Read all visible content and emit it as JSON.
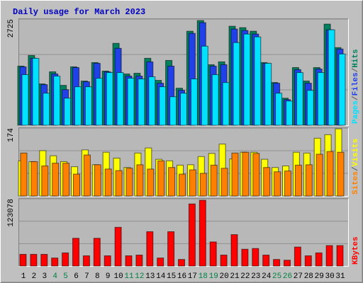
{
  "title": "Daily usage for March 2023",
  "legend_separator": "/",
  "weekend_color": "#008040",
  "weekends": [
    "4",
    "5",
    "11",
    "12",
    "18",
    "19",
    "25",
    "26"
  ],
  "chart_data": [
    {
      "type": "bar",
      "ylim": [
        0,
        2725
      ],
      "yticks": [
        2725
      ],
      "series": [
        {
          "name": "Hits",
          "color": "#00805c",
          "values": [
            1518,
            1792,
            1061,
            1372,
            1024,
            1500,
            1134,
            1609,
            1390,
            2103,
            1317,
            1335,
            1719,
            1152,
            1664,
            951,
            2414,
            2688,
            1554,
            1628,
            2542,
            2506,
            2414,
            1609,
            1097,
            695,
            1481,
            1134,
            1481,
            2597,
            1993
          ]
        },
        {
          "name": "Files",
          "color": "#2040e8",
          "values": [
            1500,
            1719,
            1042,
            1317,
            914,
            1481,
            1116,
            1591,
            1372,
            1975,
            1262,
            1262,
            1628,
            1079,
            1518,
            896,
            2359,
            2634,
            1518,
            1555,
            2469,
            2433,
            2341,
            1591,
            1079,
            658,
            1427,
            1079,
            1445,
            2451,
            1957
          ]
        },
        {
          "name": "Pages",
          "color": "#00e0ff",
          "values": [
            1299,
            1719,
            823,
            1262,
            695,
            988,
            988,
            1207,
            1353,
            1353,
            1207,
            1189,
            1244,
            988,
            732,
            823,
            1189,
            2030,
            1299,
            1097,
            2122,
            2341,
            2268,
            1591,
            823,
            622,
            1353,
            896,
            1353,
            2451,
            1829
          ]
        }
      ]
    },
    {
      "type": "bar",
      "ylim": [
        0,
        174
      ],
      "yticks": [
        174
      ],
      "series": [
        {
          "name": "Visits",
          "color": "#ffff00",
          "values": [
            90,
            88,
            116,
            103,
            88,
            75,
            118,
            80,
            112,
            97,
            73,
            110,
            123,
            94,
            90,
            79,
            80,
            101,
            109,
            133,
            95,
            112,
            112,
            94,
            73,
            77,
            112,
            110,
            148,
            157,
            172
          ]
        },
        {
          "name": "Sites",
          "color": "#ff8000",
          "values": [
            110,
            88,
            77,
            84,
            84,
            56,
            105,
            80,
            69,
            65,
            71,
            80,
            69,
            90,
            73,
            56,
            67,
            58,
            79,
            71,
            110,
            112,
            109,
            73,
            62,
            64,
            79,
            80,
            107,
            114,
            112
          ]
        }
      ]
    },
    {
      "type": "bar",
      "ylim": [
        0,
        123078
      ],
      "yticks": [
        123078
      ],
      "categories": [
        "1",
        "2",
        "3",
        "4",
        "5",
        "6",
        "7",
        "8",
        "9",
        "10",
        "11",
        "12",
        "13",
        "14",
        "15",
        "16",
        "17",
        "18",
        "19",
        "20",
        "21",
        "22",
        "23",
        "24",
        "25",
        "26",
        "27",
        "28",
        "29",
        "30",
        "31"
      ],
      "series": [
        {
          "name": "KBytes",
          "color": "#ff0000",
          "values": [
            21408,
            21408,
            21408,
            14718,
            24084,
            50844,
            18732,
            50844,
            18732,
            70914,
            18732,
            20070,
            62886,
            14718,
            62886,
            12042,
            113730,
            120420,
            44154,
            20070,
            57534,
            30774,
            32112,
            20070,
            12042,
            10704,
            34788,
            18732,
            24084,
            37464,
            37464
          ]
        }
      ]
    }
  ]
}
